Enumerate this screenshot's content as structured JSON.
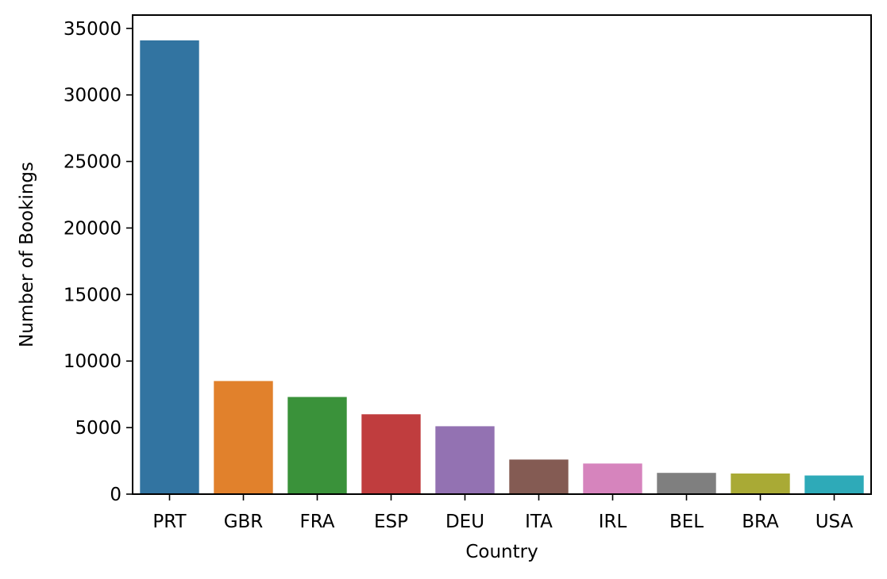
{
  "chart_data": {
    "type": "bar",
    "xlabel": "Country",
    "ylabel": "Number of Bookings",
    "ylim": [
      0,
      36000
    ],
    "yticks": [
      0,
      5000,
      10000,
      15000,
      20000,
      25000,
      30000,
      35000
    ],
    "grid": false,
    "categories": [
      "PRT",
      "GBR",
      "FRA",
      "ESP",
      "DEU",
      "ITA",
      "IRL",
      "BEL",
      "BRA",
      "USA"
    ],
    "values": [
      34100,
      8500,
      7300,
      6000,
      5100,
      2600,
      2300,
      1600,
      1550,
      1400
    ],
    "colors": [
      "#3274a1",
      "#e1812c",
      "#3a923a",
      "#c03d3e",
      "#9372b2",
      "#845b53",
      "#d684bd",
      "#7f7f7f",
      "#a9aa35",
      "#2eaab8"
    ]
  }
}
